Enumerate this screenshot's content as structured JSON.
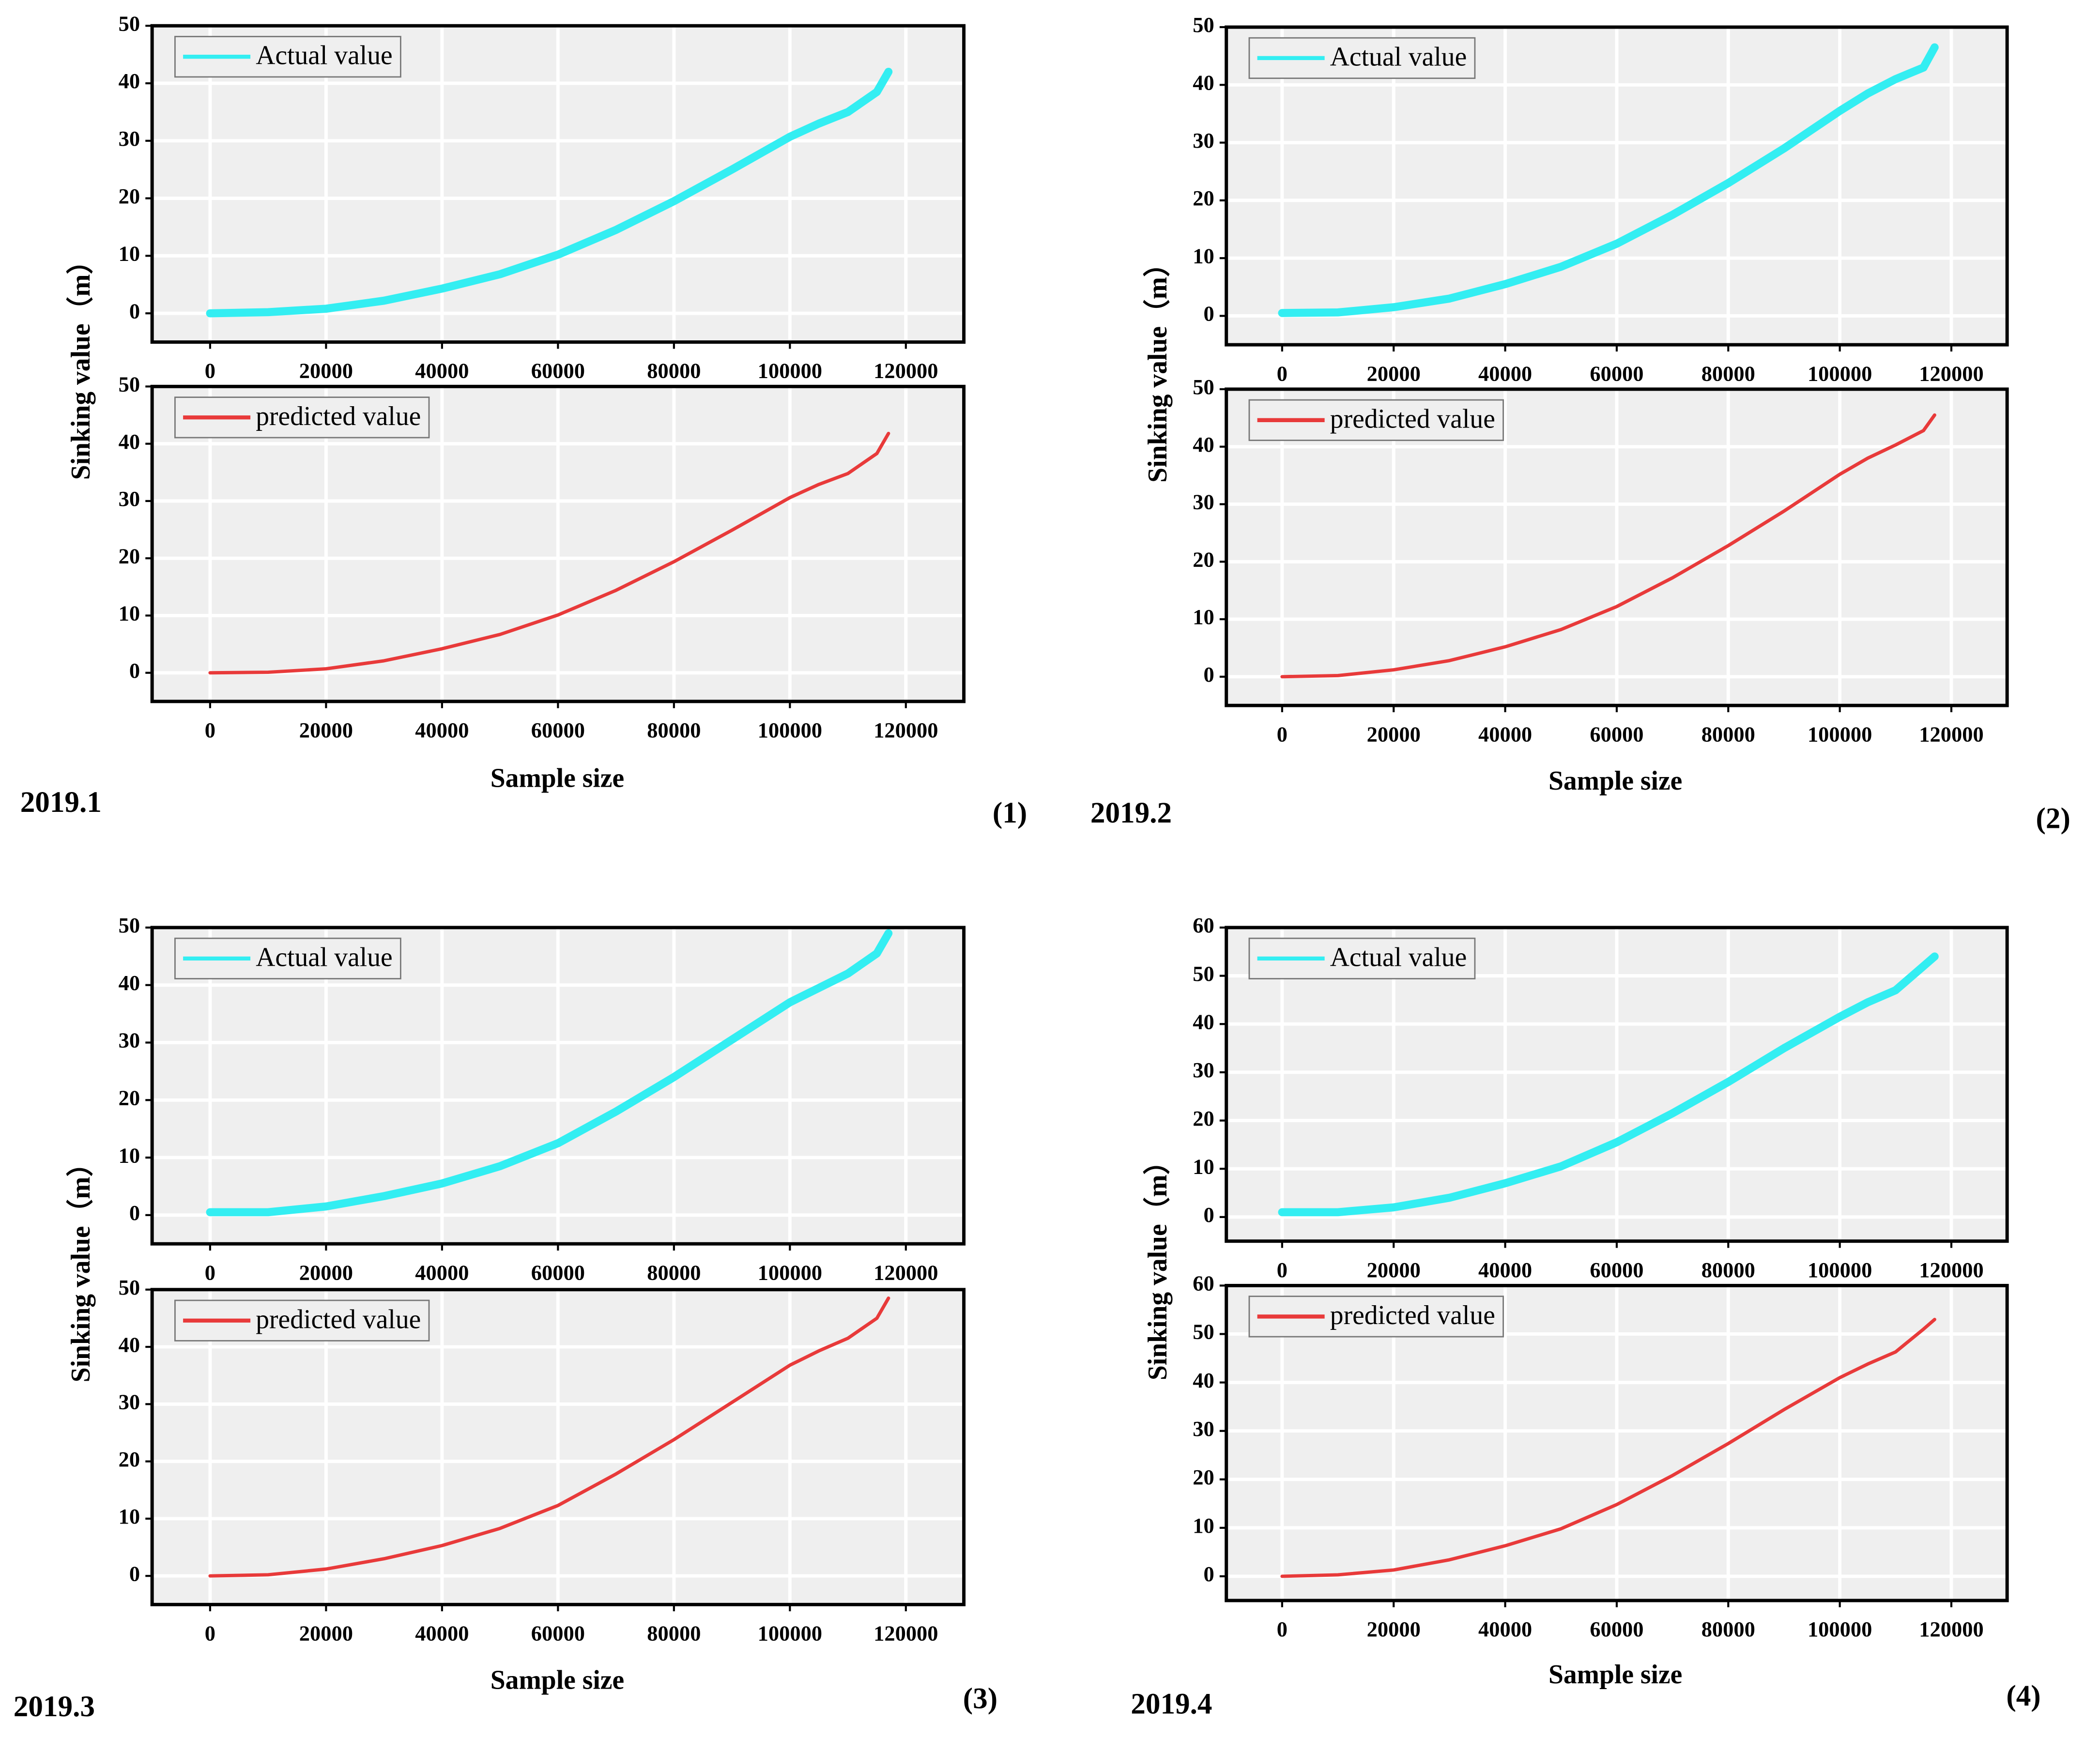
{
  "panels": [
    {
      "date": "2019.1",
      "label": "(1)",
      "xlabel": "Sample size",
      "ylabel": "Sinking value（m）"
    },
    {
      "date": "2019.2",
      "label": "(2)",
      "xlabel": "Sample size",
      "ylabel": "Sinking value（m）"
    },
    {
      "date": "2019.3",
      "label": "(3)",
      "xlabel": "Sample size",
      "ylabel": "Sinking value（m）"
    },
    {
      "date": "2019.4",
      "label": "(4)",
      "xlabel": "Sample size",
      "ylabel": "Sinking value（m）"
    }
  ],
  "chart_data": [
    {
      "type": "line",
      "x": [
        0,
        10000,
        20000,
        30000,
        40000,
        50000,
        60000,
        70000,
        80000,
        90000,
        100000,
        105000,
        110000,
        115000,
        117000
      ],
      "series": [
        {
          "name": "Actual value",
          "color": "#33eef2",
          "values": [
            0,
            0.2,
            0.8,
            2.2,
            4.3,
            6.8,
            10.2,
            14.5,
            19.5,
            25,
            30.7,
            33,
            35,
            38.5,
            42
          ]
        }
      ],
      "xlim": [
        -10000,
        130000
      ],
      "xticks": [
        0,
        20000,
        40000,
        60000,
        80000,
        100000,
        120000
      ],
      "ylim": [
        -5,
        50
      ],
      "yticks": [
        0,
        10,
        20,
        30,
        40,
        50
      ],
      "grid": true,
      "legend": "upper-left"
    },
    {
      "type": "line",
      "x": [
        0,
        10000,
        20000,
        30000,
        40000,
        50000,
        60000,
        70000,
        80000,
        90000,
        100000,
        105000,
        110000,
        115000,
        117000
      ],
      "series": [
        {
          "name": "predicted value",
          "color": "#e83a3a",
          "values": [
            0,
            0.1,
            0.7,
            2.1,
            4.2,
            6.7,
            10.1,
            14.4,
            19.4,
            24.9,
            30.6,
            32.9,
            34.8,
            38.3,
            41.8
          ]
        }
      ],
      "xlim": [
        -10000,
        130000
      ],
      "xticks": [
        0,
        20000,
        40000,
        60000,
        80000,
        100000,
        120000
      ],
      "ylim": [
        -5,
        50
      ],
      "yticks": [
        0,
        10,
        20,
        30,
        40,
        50
      ],
      "grid": true,
      "legend": "upper-left"
    },
    {
      "type": "line",
      "x": [
        0,
        10000,
        20000,
        30000,
        40000,
        50000,
        60000,
        70000,
        80000,
        90000,
        100000,
        105000,
        110000,
        115000,
        117000
      ],
      "series": [
        {
          "name": "Actual value",
          "color": "#33eef2",
          "values": [
            0.5,
            0.6,
            1.5,
            3,
            5.5,
            8.5,
            12.5,
            17.5,
            23,
            29,
            35.5,
            38.5,
            41,
            43,
            46.5
          ]
        }
      ],
      "xlim": [
        -10000,
        130000
      ],
      "xticks": [
        0,
        20000,
        40000,
        60000,
        80000,
        100000,
        120000
      ],
      "ylim": [
        -5,
        50
      ],
      "yticks": [
        0,
        10,
        20,
        30,
        40,
        50
      ],
      "grid": true,
      "legend": "upper-left"
    },
    {
      "type": "line",
      "x": [
        0,
        10000,
        20000,
        30000,
        40000,
        50000,
        60000,
        70000,
        80000,
        90000,
        100000,
        105000,
        110000,
        115000,
        117000
      ],
      "series": [
        {
          "name": "predicted value",
          "color": "#e83a3a",
          "values": [
            0,
            0.2,
            1.2,
            2.8,
            5.2,
            8.2,
            12.2,
            17.2,
            22.8,
            28.8,
            35.2,
            38,
            40.3,
            42.8,
            45.5
          ]
        }
      ],
      "xlim": [
        -10000,
        130000
      ],
      "xticks": [
        0,
        20000,
        40000,
        60000,
        80000,
        100000,
        120000
      ],
      "ylim": [
        -5,
        50
      ],
      "yticks": [
        0,
        10,
        20,
        30,
        40,
        50
      ],
      "grid": true,
      "legend": "upper-left"
    },
    {
      "type": "line",
      "x": [
        0,
        10000,
        20000,
        30000,
        40000,
        50000,
        60000,
        70000,
        80000,
        90000,
        100000,
        105000,
        110000,
        115000,
        117000
      ],
      "series": [
        {
          "name": "Actual value",
          "color": "#33eef2",
          "values": [
            0.5,
            0.5,
            1.5,
            3.3,
            5.5,
            8.5,
            12.5,
            18,
            24,
            30.5,
            37,
            39.5,
            42,
            45.5,
            49
          ]
        }
      ],
      "xlim": [
        -10000,
        130000
      ],
      "xticks": [
        0,
        20000,
        40000,
        60000,
        80000,
        100000,
        120000
      ],
      "ylim": [
        -5,
        50
      ],
      "yticks": [
        0,
        10,
        20,
        30,
        40,
        50
      ],
      "grid": true,
      "legend": "upper-left"
    },
    {
      "type": "line",
      "x": [
        0,
        10000,
        20000,
        30000,
        40000,
        50000,
        60000,
        70000,
        80000,
        90000,
        100000,
        105000,
        110000,
        115000,
        117000
      ],
      "series": [
        {
          "name": "predicted value",
          "color": "#e83a3a",
          "values": [
            0,
            0.2,
            1.2,
            3,
            5.3,
            8.3,
            12.3,
            17.8,
            23.8,
            30.3,
            36.8,
            39.3,
            41.5,
            45,
            48.5
          ]
        }
      ],
      "xlim": [
        -10000,
        130000
      ],
      "xticks": [
        0,
        20000,
        40000,
        60000,
        80000,
        100000,
        120000
      ],
      "ylim": [
        -5,
        50
      ],
      "yticks": [
        0,
        10,
        20,
        30,
        40,
        50
      ],
      "grid": true,
      "legend": "upper-left"
    },
    {
      "type": "line",
      "x": [
        0,
        10000,
        20000,
        30000,
        40000,
        50000,
        60000,
        70000,
        80000,
        90000,
        100000,
        105000,
        110000,
        115000,
        117000
      ],
      "series": [
        {
          "name": "Actual value",
          "color": "#33eef2",
          "values": [
            1,
            1,
            2,
            4,
            7,
            10.5,
            15.5,
            21.5,
            28,
            35,
            41.5,
            44.5,
            47,
            52,
            54
          ]
        }
      ],
      "xlim": [
        -10000,
        130000
      ],
      "xticks": [
        0,
        20000,
        40000,
        60000,
        80000,
        100000,
        120000
      ],
      "ylim": [
        -5,
        60
      ],
      "yticks": [
        0,
        10,
        20,
        30,
        40,
        50,
        60
      ],
      "grid": true,
      "legend": "upper-left"
    },
    {
      "type": "line",
      "x": [
        0,
        10000,
        20000,
        30000,
        40000,
        50000,
        60000,
        70000,
        80000,
        90000,
        100000,
        105000,
        110000,
        115000,
        117000
      ],
      "series": [
        {
          "name": "predicted value",
          "color": "#e83a3a",
          "values": [
            0,
            0.3,
            1.3,
            3.4,
            6.3,
            9.8,
            14.8,
            20.8,
            27.4,
            34.4,
            41,
            43.8,
            46.3,
            51,
            53
          ]
        }
      ],
      "xlim": [
        -10000,
        130000
      ],
      "xticks": [
        0,
        20000,
        40000,
        60000,
        80000,
        100000,
        120000
      ],
      "ylim": [
        -5,
        60
      ],
      "yticks": [
        0,
        10,
        20,
        30,
        40,
        50,
        60
      ],
      "grid": true,
      "legend": "upper-left"
    }
  ]
}
